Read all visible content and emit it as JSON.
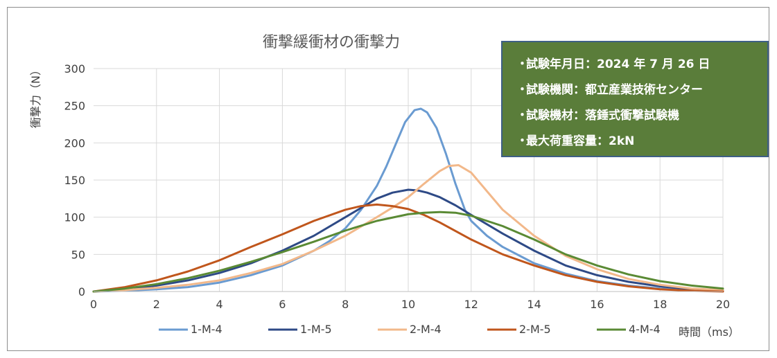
{
  "chart_data": {
    "type": "line",
    "title": "衝撃緩衝材の衝撃力",
    "xlabel": "時間（ms）",
    "ylabel": "衝撃力（N）",
    "xlim": [
      0,
      20
    ],
    "ylim": [
      0,
      300
    ],
    "x_ticks": [
      0,
      2,
      4,
      6,
      8,
      10,
      12,
      14,
      16,
      18,
      20
    ],
    "y_ticks": [
      0,
      50,
      100,
      150,
      200,
      250,
      300
    ],
    "grid": true,
    "legend_position": "bottom",
    "series": [
      {
        "name": "1-M-4",
        "color": "#6a9bd1",
        "x": [
          0,
          1,
          2,
          3,
          4,
          5,
          6,
          7,
          7.5,
          8,
          8.5,
          9,
          9.3,
          9.6,
          9.9,
          10.2,
          10.4,
          10.6,
          10.9,
          11.2,
          11.5,
          11.8,
          12,
          12.5,
          13,
          14,
          15,
          16,
          17,
          18,
          19,
          20
        ],
        "y": [
          0,
          1,
          3,
          6,
          12,
          22,
          35,
          55,
          68,
          85,
          110,
          142,
          168,
          198,
          228,
          244,
          246,
          241,
          220,
          185,
          145,
          110,
          95,
          75,
          60,
          38,
          24,
          14,
          8,
          4,
          2,
          1
        ]
      },
      {
        "name": "1-M-5",
        "color": "#2e4a86",
        "x": [
          0,
          1,
          2,
          3,
          4,
          5,
          6,
          7,
          8,
          9,
          9.5,
          10,
          10.3,
          10.6,
          11,
          11.5,
          12,
          13,
          14,
          15,
          16,
          17,
          18,
          19,
          20
        ],
        "y": [
          0,
          3,
          8,
          15,
          25,
          38,
          55,
          75,
          100,
          125,
          133,
          137,
          136,
          133,
          127,
          116,
          103,
          78,
          55,
          35,
          22,
          13,
          7,
          3,
          1
        ]
      },
      {
        "name": "2-M-4",
        "color": "#f2b88a",
        "x": [
          0,
          1,
          2,
          3,
          4,
          5,
          6,
          7,
          8,
          9,
          9.5,
          10,
          10.5,
          11,
          11.3,
          11.6,
          12,
          12.5,
          13,
          14,
          15,
          16,
          17,
          18,
          19,
          20
        ],
        "y": [
          0,
          2,
          5,
          9,
          15,
          25,
          37,
          55,
          75,
          100,
          113,
          127,
          145,
          162,
          169,
          170,
          160,
          135,
          110,
          75,
          48,
          30,
          17,
          9,
          4,
          2
        ]
      },
      {
        "name": "2-M-5",
        "color": "#c0561c",
        "x": [
          0,
          1,
          2,
          3,
          4,
          5,
          6,
          7,
          8,
          8.5,
          9,
          9.5,
          10,
          10.5,
          11,
          12,
          13,
          14,
          15,
          16,
          17,
          18,
          19,
          20
        ],
        "y": [
          0,
          6,
          15,
          27,
          42,
          60,
          77,
          95,
          110,
          115,
          117,
          115,
          111,
          103,
          93,
          70,
          50,
          35,
          22,
          13,
          7,
          3,
          1,
          0
        ]
      },
      {
        "name": "4-M-4",
        "color": "#5a8a34",
        "x": [
          0,
          1,
          2,
          3,
          4,
          5,
          6,
          7,
          8,
          9,
          10,
          10.5,
          11,
          11.5,
          12,
          13,
          14,
          15,
          16,
          17,
          18,
          19,
          20
        ],
        "y": [
          0,
          4,
          10,
          18,
          28,
          40,
          53,
          67,
          82,
          95,
          104,
          106,
          107,
          106,
          102,
          88,
          70,
          50,
          35,
          23,
          14,
          8,
          4
        ]
      }
    ]
  },
  "info_box": {
    "lines": [
      "試験年月日：2024 年 7 月 26 日",
      "試験機関：都立産業技術センター",
      "試験機材：落錘式衝撃試験機",
      "最大荷重容量：2kN"
    ],
    "bullet": "・",
    "background_color": "#5a7d3a"
  }
}
